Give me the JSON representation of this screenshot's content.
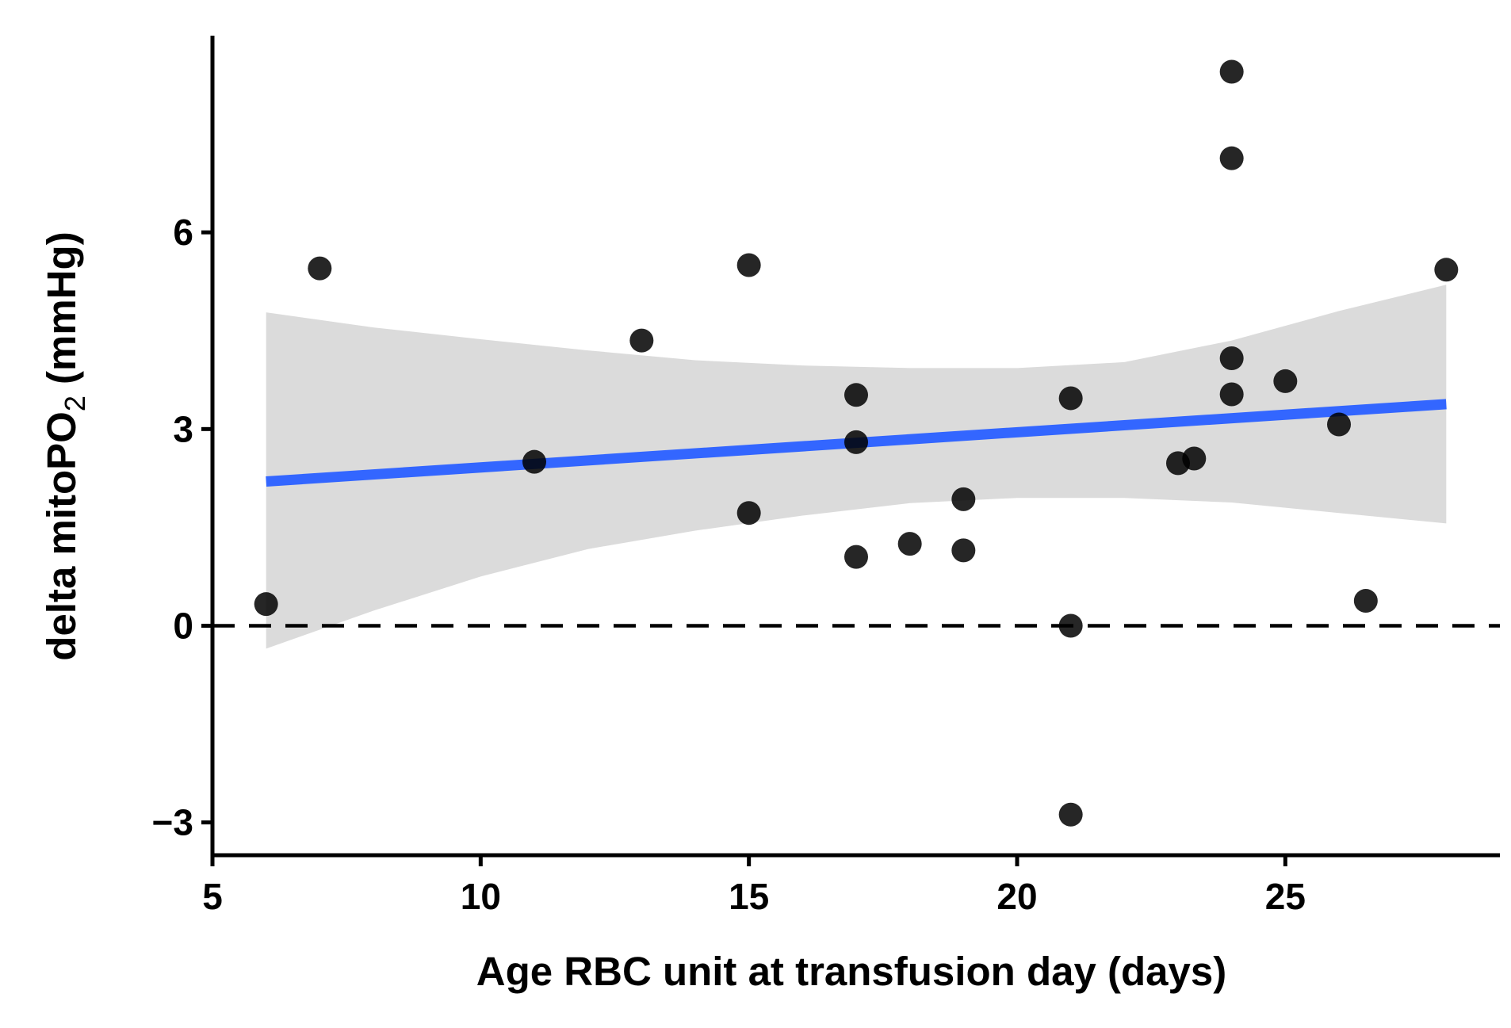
{
  "chart_data": {
    "type": "scatter",
    "xlabel": "Age RBC unit at transfusion day (days)",
    "ylabel_main": "delta mitoPO",
    "ylabel_sub": "2",
    "ylabel_unit": " (mmHg)",
    "xlim": [
      5,
      29
    ],
    "ylim": [
      -3.5,
      9
    ],
    "xticks": [
      5,
      10,
      15,
      20,
      25
    ],
    "xtick_labels": [
      "5",
      "10",
      "15",
      "20",
      "25"
    ],
    "yticks": [
      -3,
      0,
      3,
      6
    ],
    "ytick_labels": [
      "−3",
      "0",
      "3",
      "6"
    ],
    "grid": false,
    "reference_line": {
      "y": 0,
      "style": "dashed",
      "color": "#000000"
    },
    "points": [
      {
        "x": 6,
        "y": 0.33
      },
      {
        "x": 7,
        "y": 5.45
      },
      {
        "x": 11,
        "y": 2.5
      },
      {
        "x": 13,
        "y": 4.35
      },
      {
        "x": 15,
        "y": 5.5
      },
      {
        "x": 15,
        "y": 1.72
      },
      {
        "x": 17,
        "y": 3.52
      },
      {
        "x": 17,
        "y": 2.8
      },
      {
        "x": 17,
        "y": 1.05
      },
      {
        "x": 18,
        "y": 1.25
      },
      {
        "x": 19,
        "y": 1.93
      },
      {
        "x": 19,
        "y": 1.15
      },
      {
        "x": 21,
        "y": 3.47
      },
      {
        "x": 21,
        "y": 0.0
      },
      {
        "x": 21,
        "y": -2.88
      },
      {
        "x": 23,
        "y": 2.48
      },
      {
        "x": 23.3,
        "y": 2.55
      },
      {
        "x": 24,
        "y": 8.45
      },
      {
        "x": 24,
        "y": 7.13
      },
      {
        "x": 24,
        "y": 4.08
      },
      {
        "x": 24,
        "y": 3.53
      },
      {
        "x": 25,
        "y": 3.73
      },
      {
        "x": 26,
        "y": 3.07
      },
      {
        "x": 26.5,
        "y": 0.38
      },
      {
        "x": 28,
        "y": 5.43
      }
    ],
    "regression": {
      "x": [
        6,
        28
      ],
      "y": [
        2.2,
        3.38
      ],
      "color": "#3366ff"
    },
    "confidence_band": {
      "color": "#d9d9d9",
      "x": [
        6,
        8,
        10,
        12,
        14,
        16,
        18,
        20,
        22,
        24,
        26,
        28
      ],
      "upper": [
        4.78,
        4.55,
        4.37,
        4.2,
        4.05,
        3.97,
        3.93,
        3.93,
        4.02,
        4.35,
        4.8,
        5.2
      ],
      "lower": [
        -0.35,
        0.23,
        0.75,
        1.17,
        1.45,
        1.68,
        1.87,
        1.95,
        1.95,
        1.88,
        1.72,
        1.56
      ]
    },
    "point_color": "#000000"
  }
}
